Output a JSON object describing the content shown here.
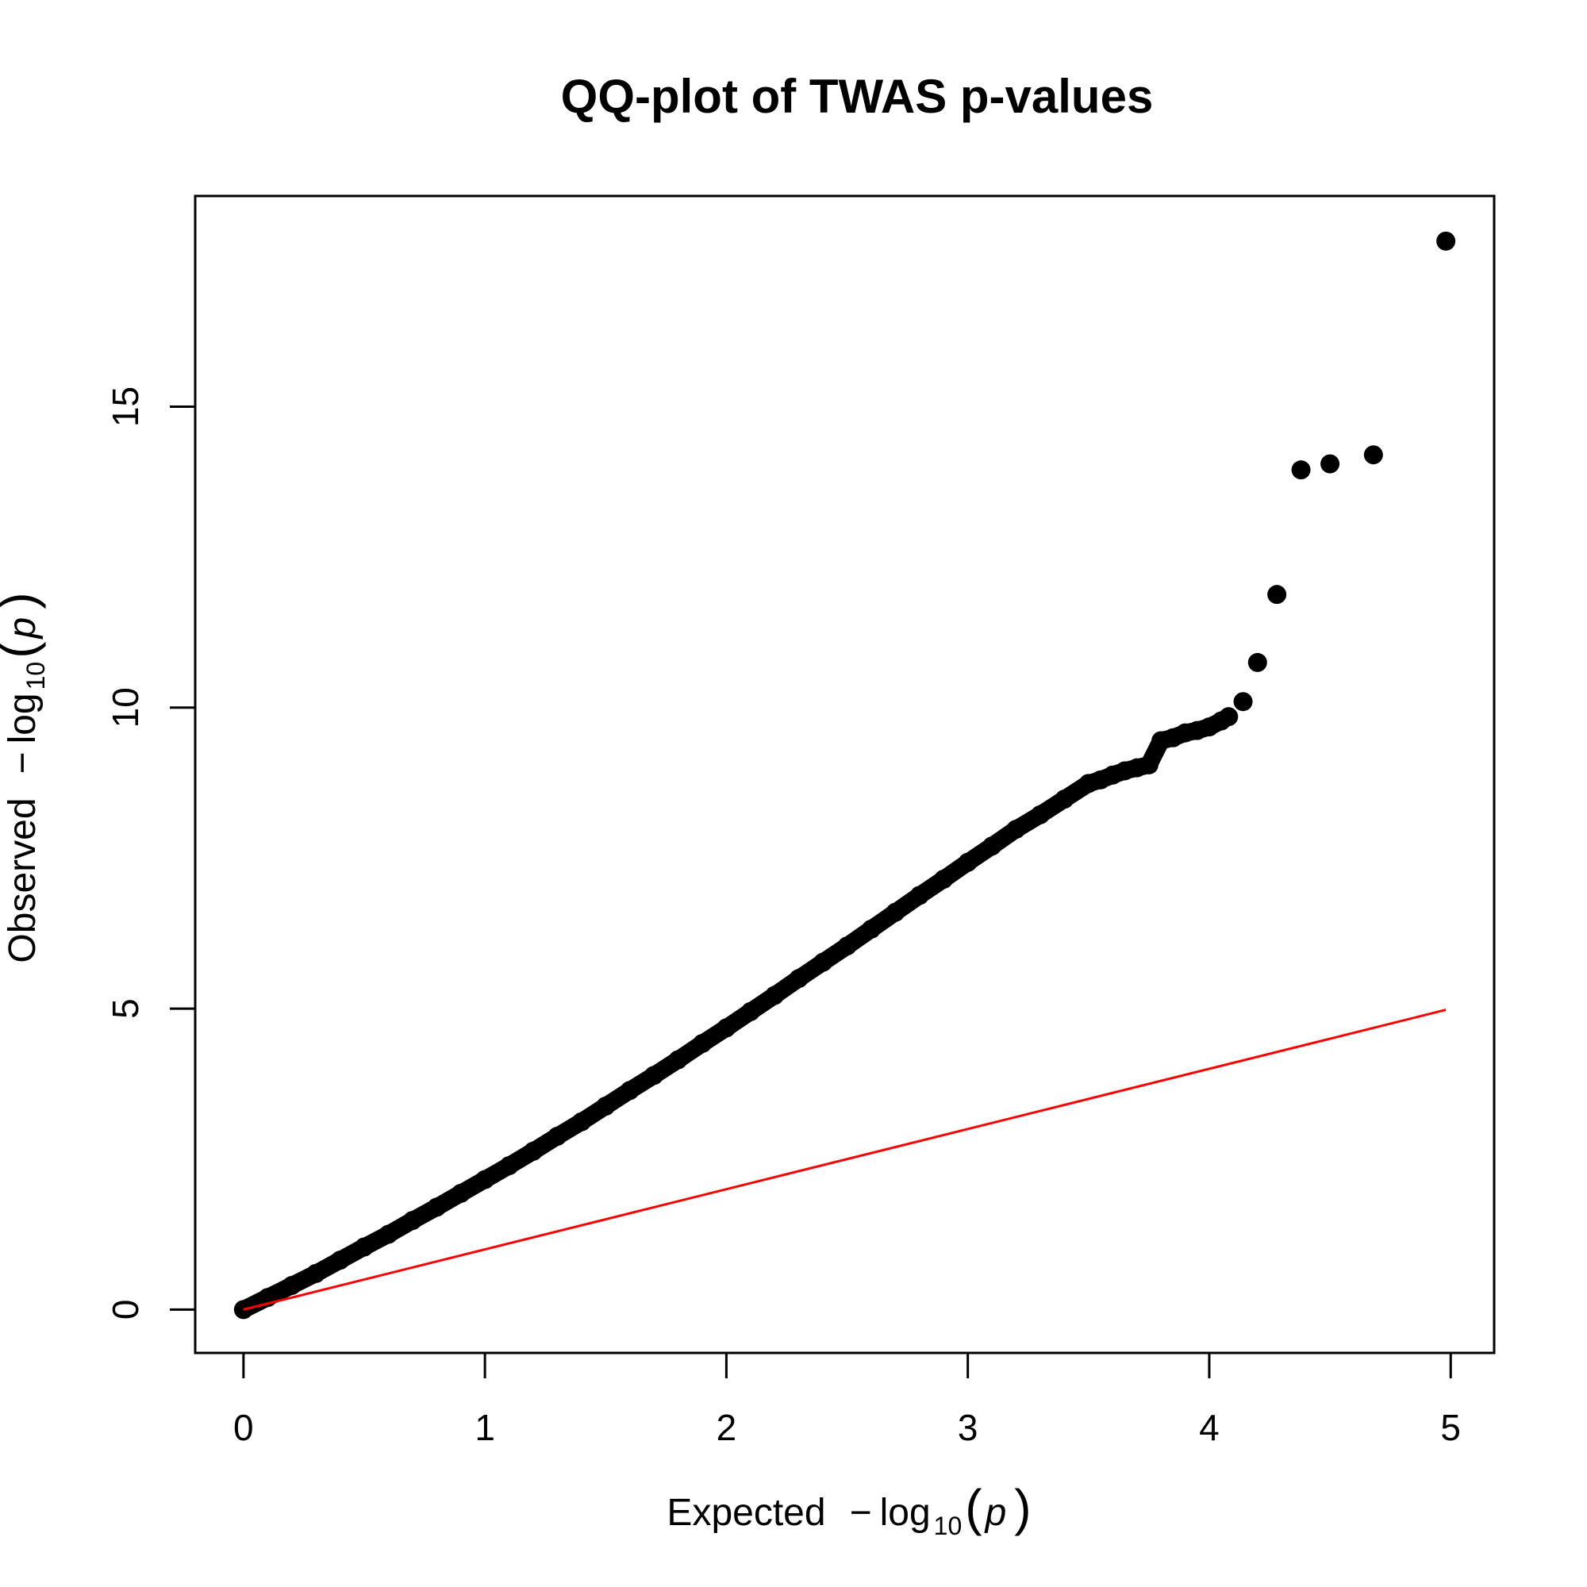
{
  "chart_data": {
    "type": "scatter",
    "title": "QQ-plot of TWAS p-values",
    "xlabel": {
      "prefix": "Expected",
      "minus": "−",
      "log": "log",
      "sub": "10",
      "open": "(",
      "var": "p",
      "close": ")"
    },
    "ylabel": {
      "prefix": "Observed",
      "minus": "−",
      "log": "log",
      "sub": "10",
      "open": "(",
      "var": "p",
      "close": ")"
    },
    "xlim": [
      -0.2,
      5.18
    ],
    "ylim": [
      -0.72,
      18.5
    ],
    "x_ticks": [
      0,
      1,
      2,
      3,
      4,
      5
    ],
    "x_tick_labels": [
      "0",
      "1",
      "2",
      "3",
      "4",
      "5"
    ],
    "y_ticks": [
      0,
      5,
      10,
      15
    ],
    "y_tick_labels": [
      "0",
      "5",
      "10",
      "15"
    ],
    "grid": false,
    "legend": null,
    "series": [
      {
        "kind": "points",
        "color": "#000000",
        "x": [
          0.0,
          0.1,
          0.2,
          0.3,
          0.4,
          0.5,
          0.6,
          0.7,
          0.8,
          0.9,
          1.0,
          1.1,
          1.2,
          1.3,
          1.4,
          1.5,
          1.6,
          1.7,
          1.8,
          1.9,
          2.0,
          2.1,
          2.2,
          2.3,
          2.4,
          2.5,
          2.6,
          2.7,
          2.8,
          2.9,
          3.0,
          3.1,
          3.2,
          3.3,
          3.4,
          3.5,
          3.55,
          3.6,
          3.65,
          3.7,
          3.75,
          3.8,
          3.85,
          3.9,
          3.95,
          4.0,
          4.05,
          4.08,
          4.14,
          4.2,
          4.28,
          4.38,
          4.5,
          4.68,
          4.98
        ],
        "y": [
          0.0,
          0.2,
          0.4,
          0.6,
          0.82,
          1.04,
          1.25,
          1.48,
          1.7,
          1.93,
          2.16,
          2.39,
          2.63,
          2.88,
          3.12,
          3.38,
          3.64,
          3.89,
          4.15,
          4.42,
          4.68,
          4.95,
          5.22,
          5.5,
          5.77,
          6.04,
          6.32,
          6.6,
          6.88,
          7.15,
          7.43,
          7.7,
          7.98,
          8.22,
          8.48,
          8.74,
          8.8,
          8.88,
          8.95,
          9.0,
          9.05,
          9.45,
          9.5,
          9.58,
          9.62,
          9.68,
          9.78,
          9.85,
          10.1,
          10.75,
          11.88,
          13.95,
          14.05,
          14.2,
          17.75
        ]
      },
      {
        "kind": "line",
        "color": "#ff0000",
        "x": [
          0,
          4.98
        ],
        "y": [
          0,
          4.98
        ]
      }
    ]
  }
}
